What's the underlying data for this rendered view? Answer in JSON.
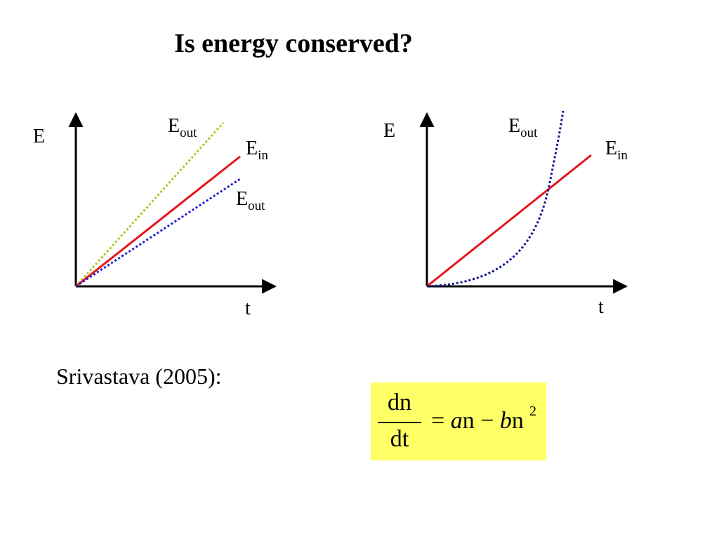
{
  "title": "Is energy conserved?",
  "colors": {
    "e_in": "#e8141b",
    "e_out_high": "#a8c820",
    "e_out_low": "#1f1fd0",
    "e_out_curve": "#101890",
    "equation_background": "#ffff66"
  },
  "left_graph": {
    "y_axis_label": "E",
    "x_axis_label": "t",
    "lines": [
      {
        "label": "E",
        "subscript": "out",
        "style": "dotted",
        "color": "#a8c820"
      },
      {
        "label": "E",
        "subscript": "in",
        "style": "solid",
        "color": "#e8141b"
      },
      {
        "label": "E",
        "subscript": "out",
        "style": "dotted",
        "color": "#1f1fd0"
      }
    ]
  },
  "right_graph": {
    "y_axis_label": "E",
    "x_axis_label": "t",
    "lines": [
      {
        "label": "E",
        "subscript": "out",
        "style": "dotted",
        "shape": "exponential curve",
        "color": "#101890"
      },
      {
        "label": "E",
        "subscript": "in",
        "style": "solid",
        "shape": "straight line",
        "color": "#e8141b"
      }
    ]
  },
  "citation": "Srivastava (2005):",
  "equation": {
    "numerator": "dn",
    "denominator": "dt",
    "equals": "=",
    "a": "a",
    "n1": "n",
    "minus": "−",
    "b": "b",
    "n2": "n",
    "exponent": "2"
  }
}
